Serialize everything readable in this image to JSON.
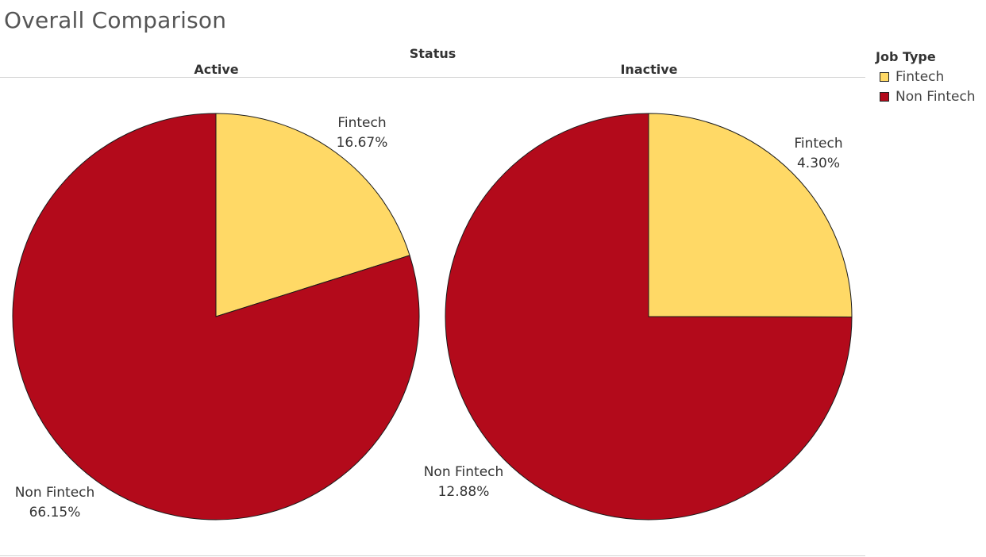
{
  "title": "Overall Comparison",
  "column_header": "Status",
  "legend": {
    "title": "Job Type",
    "items": [
      {
        "label": "Fintech",
        "color": "#FFD966"
      },
      {
        "label": "Non Fintech",
        "color": "#B30A1B"
      }
    ]
  },
  "chart_data": [
    {
      "type": "pie",
      "title": "Active",
      "slices": [
        {
          "label": "Fintech",
          "value": 16.67,
          "value_text": "16.67%",
          "color": "#FFD966"
        },
        {
          "label": "Non Fintech",
          "value": 66.15,
          "value_text": "66.15%",
          "color": "#B30A1B"
        }
      ]
    },
    {
      "type": "pie",
      "title": "Inactive",
      "slices": [
        {
          "label": "Fintech",
          "value": 4.3,
          "value_text": "4.30%",
          "color": "#FFD966"
        },
        {
          "label": "Non Fintech",
          "value": 12.88,
          "value_text": "12.88%",
          "color": "#B30A1B"
        }
      ]
    }
  ]
}
